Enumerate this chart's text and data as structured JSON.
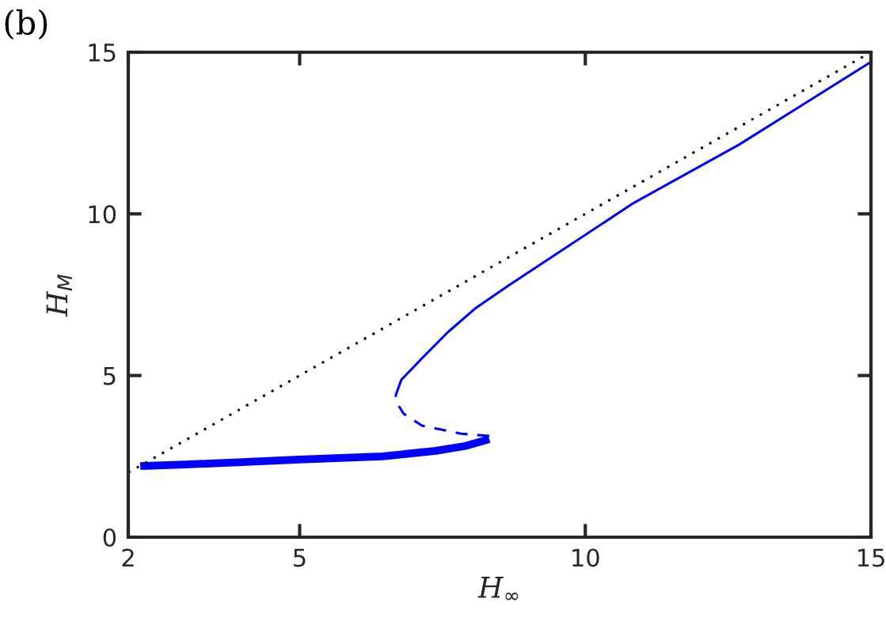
{
  "chart_data": {
    "type": "line",
    "xlabel": "H$_{∞}$",
    "ylabel": "H$_{M}$",
    "annotations": [
      "(b)"
    ],
    "xlim": [
      2,
      15
    ],
    "ylim": [
      0,
      15
    ],
    "xticks": [
      2,
      5,
      10,
      15
    ],
    "yticks": [
      0,
      5,
      10,
      15
    ],
    "grid": false,
    "marker": "none",
    "series": [
      {
        "color": "#0000ff",
        "line_style": "solid",
        "x": [
          2.21,
          3.0,
          4.0,
          4.98,
          6.45,
          7.38,
          7.9,
          8.32
        ],
        "values": [
          2.2,
          2.25,
          2.32,
          2.4,
          2.5,
          2.67,
          2.82,
          3.03
        ]
      },
      {
        "color": "#0000ff",
        "line_style": "dashed",
        "x": [
          8.32,
          7.83,
          7.14,
          6.82,
          6.71,
          6.68
        ],
        "values": [
          3.13,
          3.2,
          3.45,
          3.82,
          4.13,
          4.38
        ]
      },
      {
        "color": "#0000ff",
        "line_style": "solid",
        "x": [
          6.68,
          6.78,
          7.14,
          7.6,
          8.07,
          8.67,
          10.84,
          12.69,
          15.0
        ],
        "values": [
          4.38,
          4.87,
          5.53,
          6.35,
          7.07,
          7.8,
          10.33,
          12.14,
          14.7
        ]
      },
      {
        "color": "#000000",
        "line_style": "dotted",
        "x": [
          2,
          15
        ],
        "values": [
          2,
          15
        ]
      }
    ]
  }
}
